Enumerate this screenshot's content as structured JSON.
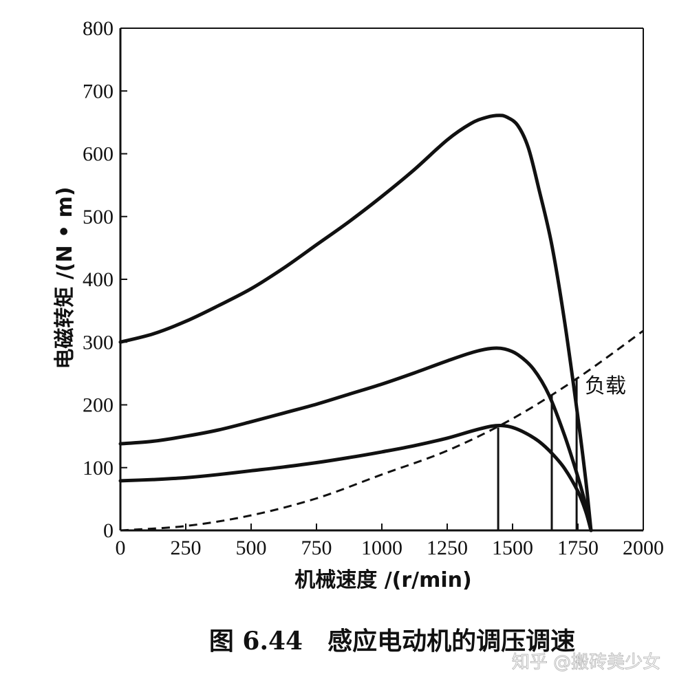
{
  "chart_data": {
    "type": "line",
    "xlabel": "机械速度 /(r/min)",
    "ylabel": "电磁转矩 /(N • m)",
    "xlim": [
      0,
      2000
    ],
    "ylim": [
      0,
      800
    ],
    "xticks": [
      0,
      250,
      500,
      750,
      1000,
      1250,
      1500,
      1750,
      2000
    ],
    "yticks": [
      0,
      100,
      200,
      300,
      400,
      500,
      600,
      700,
      800
    ],
    "grid": false,
    "series": [
      {
        "style": "solid",
        "x": [
          0,
          125,
          250,
          375,
          500,
          625,
          750,
          875,
          1000,
          1125,
          1250,
          1340,
          1400,
          1450,
          1480,
          1520,
          1560,
          1600,
          1650,
          1700,
          1750,
          1780,
          1800
        ],
        "y": [
          300,
          313,
          333,
          358,
          385,
          418,
          455,
          492,
          532,
          575,
          622,
          648,
          658,
          661,
          658,
          645,
          610,
          545,
          455,
          330,
          180,
          80,
          0
        ]
      },
      {
        "style": "solid",
        "x": [
          0,
          125,
          250,
          375,
          500,
          625,
          750,
          875,
          1000,
          1125,
          1250,
          1350,
          1420,
          1470,
          1520,
          1580,
          1640,
          1700,
          1750,
          1780,
          1800
        ],
        "y": [
          138,
          142,
          150,
          160,
          173,
          187,
          201,
          217,
          233,
          251,
          270,
          284,
          290,
          289,
          280,
          257,
          215,
          150,
          85,
          40,
          0
        ]
      },
      {
        "style": "solid",
        "x": [
          0,
          125,
          250,
          375,
          500,
          625,
          750,
          875,
          1000,
          1125,
          1250,
          1350,
          1420,
          1460,
          1500,
          1550,
          1600,
          1650,
          1700,
          1750,
          1780,
          1800
        ],
        "y": [
          79,
          81,
          84,
          89,
          95,
          101,
          108,
          116,
          125,
          135,
          147,
          159,
          166,
          167,
          164,
          155,
          142,
          123,
          98,
          62,
          30,
          0
        ]
      },
      {
        "name": "负载",
        "style": "dashed",
        "x": [
          0,
          250,
          500,
          750,
          1000,
          1250,
          1500,
          1750,
          2000
        ],
        "y": [
          0,
          7,
          24,
          51,
          89,
          127,
          178,
          243,
          318
        ]
      }
    ],
    "operating_points": [
      {
        "x": 1445,
        "y": 164
      },
      {
        "x": 1650,
        "y": 216
      },
      {
        "x": 1745,
        "y": 243
      }
    ]
  },
  "caption": "图 6.44　感应电动机的调压调速",
  "watermark": "知乎 @搬砖美少女"
}
